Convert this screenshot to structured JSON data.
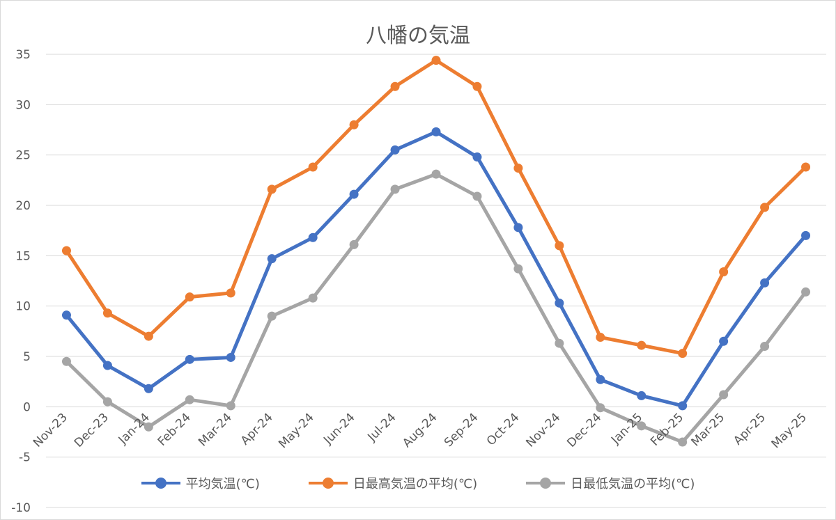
{
  "chart_data": {
    "type": "line",
    "title": "八幡の気温",
    "categories": [
      "Nov-23",
      "Dec-23",
      "Jan-24",
      "Feb-24",
      "Mar-24",
      "Apr-24",
      "May-24",
      "Jun-24",
      "Jul-24",
      "Aug-24",
      "Sep-24",
      "Oct-24",
      "Nov-24",
      "Dec-24",
      "Jan-25",
      "Feb-25",
      "Mar-25",
      "Apr-25",
      "May-25"
    ],
    "ylim": [
      -10,
      35
    ],
    "yticks": [
      -10,
      -5,
      0,
      5,
      10,
      15,
      20,
      25,
      30,
      35
    ],
    "grid": true,
    "legend": "bottom",
    "series": [
      {
        "name": "平均気温(℃)",
        "color": "#4472c4",
        "values": [
          9.1,
          4.1,
          1.8,
          4.7,
          4.9,
          14.7,
          16.8,
          21.1,
          25.5,
          27.3,
          24.8,
          17.8,
          10.3,
          2.7,
          1.1,
          0.1,
          6.5,
          12.3,
          17.0
        ]
      },
      {
        "name": "日最高気温の平均(℃)",
        "color": "#ed7d31",
        "values": [
          15.5,
          9.3,
          7.0,
          10.9,
          11.3,
          21.6,
          23.8,
          28.0,
          31.8,
          34.4,
          31.8,
          23.7,
          16.0,
          6.9,
          6.1,
          5.3,
          13.4,
          19.8,
          23.8
        ]
      },
      {
        "name": "日最低気温の平均(℃)",
        "color": "#a5a5a5",
        "values": [
          4.5,
          0.5,
          -2.0,
          0.7,
          0.1,
          9.0,
          10.8,
          16.1,
          21.6,
          23.1,
          20.9,
          13.7,
          6.3,
          -0.1,
          -1.9,
          -3.5,
          1.2,
          6.0,
          11.4
        ]
      }
    ]
  }
}
